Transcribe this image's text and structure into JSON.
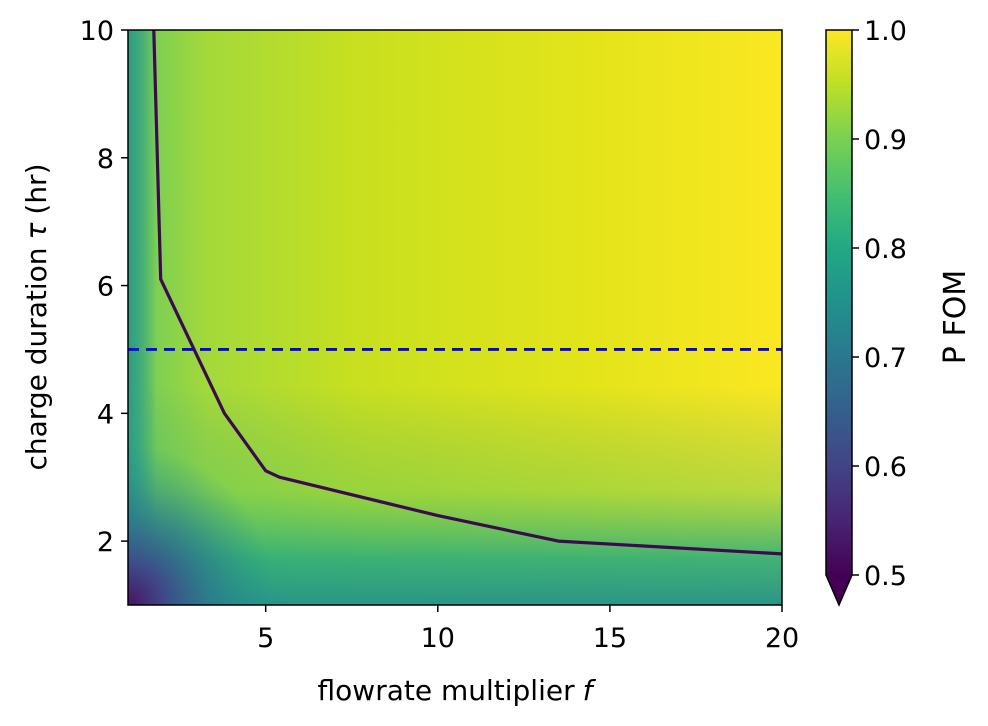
{
  "chart_data": {
    "type": "heatmap",
    "colormap": "viridis",
    "x_range": [
      1,
      20
    ],
    "y_range": [
      1,
      10
    ],
    "xlabel": "flowrate multiplier",
    "xlabel_var": "f",
    "ylabel": "charge duration",
    "ylabel_var": "τ",
    "ylabel_unit": "(hr)",
    "x_ticks": [
      {
        "value": 5,
        "label": "5"
      },
      {
        "value": 10,
        "label": "10"
      },
      {
        "value": 15,
        "label": "15"
      },
      {
        "value": 20,
        "label": "20"
      }
    ],
    "y_ticks": [
      {
        "value": 2,
        "label": "2"
      },
      {
        "value": 4,
        "label": "4"
      },
      {
        "value": 6,
        "label": "6"
      },
      {
        "value": 8,
        "label": "8"
      },
      {
        "value": 10,
        "label": "10"
      }
    ],
    "colorbar": {
      "label": "P FOM",
      "range": [
        0.5,
        1.0
      ],
      "extend": "min",
      "ticks": [
        {
          "value": 0.5,
          "label": "0.5"
        },
        {
          "value": 0.6,
          "label": "0.6"
        },
        {
          "value": 0.7,
          "label": "0.7"
        },
        {
          "value": 0.8,
          "label": "0.8"
        },
        {
          "value": 0.9,
          "label": "0.9"
        },
        {
          "value": 1.0,
          "label": "1.0"
        }
      ]
    },
    "contour_line": {
      "color": "#3b0a4f",
      "points": [
        [
          1.75,
          10
        ],
        [
          1.95,
          6.1
        ],
        [
          3.8,
          4.0
        ],
        [
          5.0,
          3.1
        ],
        [
          5.4,
          3.0
        ],
        [
          10.0,
          2.4
        ],
        [
          13.5,
          2.0
        ],
        [
          20.0,
          1.8
        ]
      ]
    },
    "reference_line": {
      "y": 5,
      "color": "#0000ff",
      "style": "dashed"
    }
  }
}
